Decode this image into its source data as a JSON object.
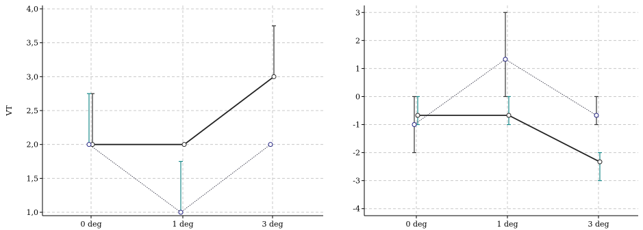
{
  "chart_data": [
    {
      "type": "line",
      "ylabel": "VT",
      "xlabel": "",
      "categories": [
        "0 deg",
        "1 deg",
        "3 deg"
      ],
      "ylim": [
        0.95,
        4.05
      ],
      "yticks": [
        "1,0",
        "1,5",
        "2,0",
        "2,5",
        "3,0",
        "3,5",
        "4,0"
      ],
      "grid": true,
      "series": [
        {
          "style": "solid",
          "color": "#222222",
          "errorbar_color": "#333333",
          "marker_fill": "#ffffff",
          "values": [
            2.0,
            2.0,
            3.0
          ],
          "err_low": [
            2.0,
            2.0,
            3.0
          ],
          "err_high": [
            2.75,
            2.0,
            3.75
          ]
        },
        {
          "style": "dotted",
          "color": "#333344",
          "errorbar_color": "#1a8a8a",
          "marker_fill": "#ffffff",
          "marker_edge": "#202080",
          "values": [
            2.0,
            1.0,
            2.0
          ],
          "err_low": [
            2.0,
            1.0,
            2.0
          ],
          "err_high": [
            2.75,
            1.75,
            2.0
          ]
        }
      ]
    },
    {
      "type": "line",
      "ylabel": "",
      "xlabel": "",
      "categories": [
        "0 deg",
        "1 deg",
        "3 deg"
      ],
      "ylim": [
        -4.25,
        3.25
      ],
      "yticks": [
        "-4",
        "-3",
        "-2",
        "-1",
        "0",
        "1",
        "2",
        "3"
      ],
      "grid": true,
      "series": [
        {
          "style": "solid",
          "color": "#222222",
          "errorbar_color": "#1a8a8a",
          "marker_fill": "#ffffff",
          "values": [
            -0.67,
            -0.67,
            -2.33
          ],
          "err_low": [
            -1.0,
            -1.0,
            -3.0
          ],
          "err_high": [
            0.0,
            0.0,
            -2.0
          ]
        },
        {
          "style": "dotted",
          "color": "#333344",
          "errorbar_color": "#333333",
          "marker_fill": "#ffffff",
          "marker_edge": "#202080",
          "values": [
            -1.0,
            1.33,
            -0.67
          ],
          "err_low": [
            -2.0,
            0.0,
            -1.0
          ],
          "err_high": [
            0.0,
            3.0,
            0.0
          ]
        }
      ]
    }
  ]
}
